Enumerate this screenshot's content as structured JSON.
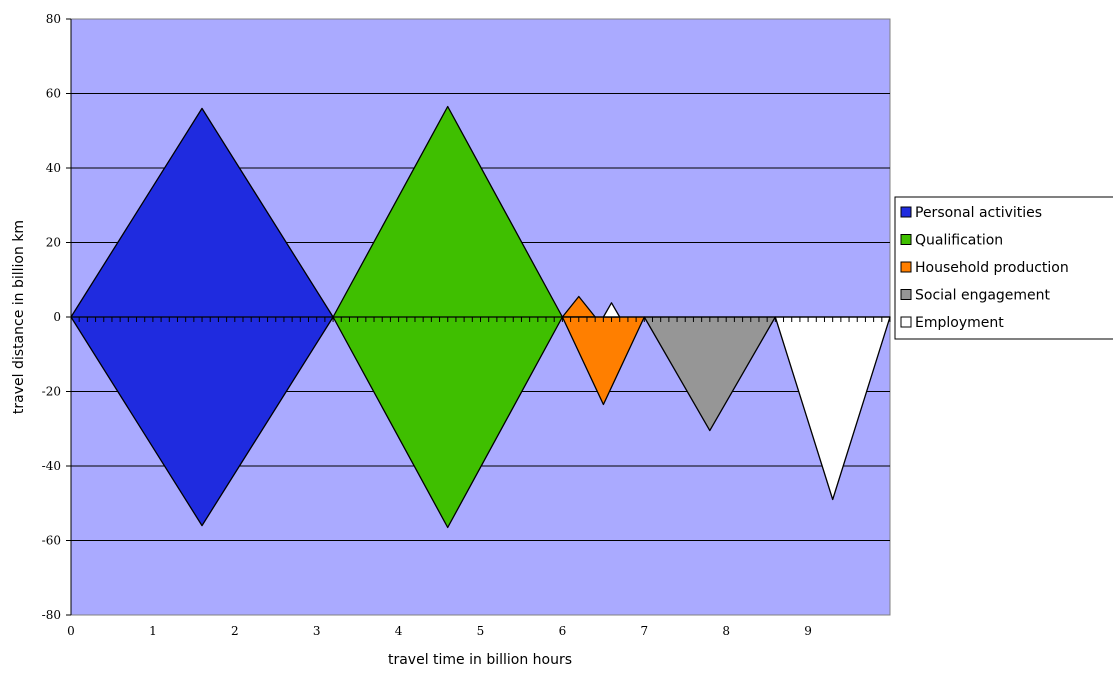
{
  "chart_data": {
    "type": "area",
    "title": "",
    "xlabel": "travel time in billion hours",
    "ylabel": "travel distance in billion km",
    "xlim": [
      0,
      10
    ],
    "ylim": [
      -80,
      80
    ],
    "x_ticks": [
      "0",
      "1",
      "2",
      "3",
      "4",
      "5",
      "6",
      "7",
      "8",
      "9"
    ],
    "y_ticks": [
      "80",
      "60",
      "40",
      "20",
      "0",
      "-20",
      "-40",
      "-60",
      "-80"
    ],
    "grid": "horizontal",
    "plot_background": "#aaaaff",
    "legend_position": "right",
    "series": [
      {
        "name": "Personal activities",
        "color": "#1f2bdf",
        "polygons": [
          [
            [
              0,
              0
            ],
            [
              1.6,
              56
            ],
            [
              3.2,
              0
            ],
            [
              1.6,
              -56
            ]
          ]
        ]
      },
      {
        "name": "Qualification",
        "color": "#3fbf00",
        "polygons": [
          [
            [
              3.2,
              0
            ],
            [
              4.6,
              56.5
            ],
            [
              6.0,
              0
            ],
            [
              4.6,
              -56.5
            ]
          ]
        ]
      },
      {
        "name": "Household production",
        "color": "#ff7f00",
        "polygons": [
          [
            [
              6.0,
              0
            ],
            [
              6.2,
              5.5
            ],
            [
              6.4,
              0
            ]
          ],
          [
            [
              6.0,
              0
            ],
            [
              6.5,
              -23.5
            ],
            [
              7.0,
              0
            ]
          ]
        ]
      },
      {
        "name": "Social engagement",
        "color": "#969696",
        "polygons": [
          [
            [
              7.0,
              0
            ],
            [
              7.8,
              -30.5
            ],
            [
              8.6,
              0
            ]
          ]
        ]
      },
      {
        "name": "Employment",
        "color": "#ffffff",
        "polygons": [
          [
            [
              6.5,
              0
            ],
            [
              6.6,
              3.8
            ],
            [
              6.7,
              0
            ]
          ],
          [
            [
              8.6,
              0
            ],
            [
              9.3,
              -49
            ],
            [
              10.0,
              0
            ]
          ]
        ]
      }
    ]
  }
}
